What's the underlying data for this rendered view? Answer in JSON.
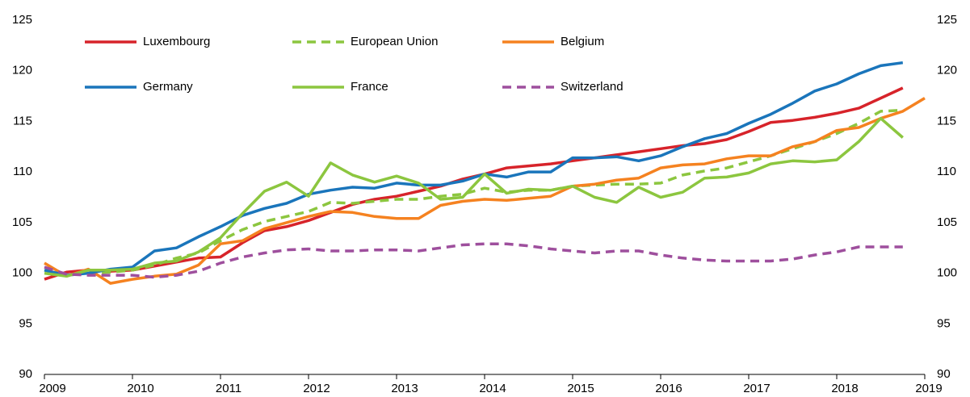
{
  "chart_data": {
    "type": "line",
    "x": [
      2009,
      2009.25,
      2009.5,
      2009.75,
      2010,
      2010.25,
      2010.5,
      2010.75,
      2011,
      2011.25,
      2011.5,
      2011.75,
      2012,
      2012.25,
      2012.5,
      2012.75,
      2013,
      2013.25,
      2013.5,
      2013.75,
      2014,
      2014.25,
      2014.5,
      2014.75,
      2015,
      2015.25,
      2015.5,
      2015.75,
      2016,
      2016.25,
      2016.5,
      2016.75,
      2017,
      2017.25,
      2017.5,
      2017.75,
      2018,
      2018.25,
      2018.5,
      2018.75,
      2019
    ],
    "xlim": [
      2009,
      2019
    ],
    "xticks": [
      2009,
      2010,
      2011,
      2012,
      2013,
      2014,
      2015,
      2016,
      2017,
      2018,
      2019
    ],
    "ylim": [
      90,
      125
    ],
    "yticks": [
      90,
      95,
      100,
      105,
      110,
      115,
      120,
      125
    ],
    "y2lim": [
      90,
      125
    ],
    "y2ticks": [
      90,
      95,
      100,
      105,
      110,
      115,
      120,
      125
    ],
    "grid": false,
    "series": [
      {
        "name": "Luxembourg",
        "color": "#d7232a",
        "dashed": false,
        "values": [
          99.4,
          100.1,
          100.3,
          100.2,
          100.3,
          100.7,
          101.1,
          101.5,
          101.6,
          103.0,
          104.2,
          104.6,
          105.2,
          106.0,
          106.8,
          107.3,
          107.6,
          108.1,
          108.6,
          109.3,
          109.8,
          110.4,
          110.6,
          110.8,
          111.1,
          111.4,
          111.7,
          112.0,
          112.3,
          112.6,
          112.8,
          113.2,
          114.0,
          114.9,
          115.1,
          115.4,
          115.8,
          116.3,
          117.3,
          118.3,
          null
        ]
      },
      {
        "name": "European Union",
        "color": "#8cc63f",
        "dashed": true,
        "values": [
          100.3,
          99.8,
          100.0,
          100.1,
          100.3,
          100.8,
          101.5,
          102.0,
          103.2,
          104.3,
          105.1,
          105.6,
          106.1,
          107.0,
          106.9,
          107.1,
          107.3,
          107.3,
          107.6,
          107.8,
          108.4,
          108.0,
          108.2,
          108.2,
          108.6,
          108.7,
          108.8,
          108.8,
          108.9,
          109.7,
          110.1,
          110.4,
          111.0,
          111.6,
          112.3,
          113.0,
          113.8,
          114.8,
          116.0,
          116.1,
          null
        ]
      },
      {
        "name": "Belgium",
        "color": "#f58220",
        "dashed": false,
        "values": [
          101.0,
          99.7,
          100.4,
          99.0,
          99.4,
          99.7,
          99.9,
          100.8,
          102.9,
          103.2,
          104.4,
          105.0,
          105.6,
          106.1,
          106.0,
          105.6,
          105.4,
          105.4,
          106.7,
          107.1,
          107.3,
          107.2,
          107.4,
          107.6,
          108.6,
          108.8,
          109.2,
          109.4,
          110.4,
          110.7,
          110.8,
          111.3,
          111.6,
          111.6,
          112.5,
          113.0,
          114.1,
          114.4,
          115.3,
          116.0,
          117.3
        ]
      },
      {
        "name": "Germany",
        "color": "#1a75bb",
        "dashed": false,
        "values": [
          100.3,
          99.8,
          100.0,
          100.4,
          100.6,
          102.2,
          102.5,
          103.6,
          104.6,
          105.7,
          106.4,
          106.9,
          107.8,
          108.2,
          108.5,
          108.4,
          108.9,
          108.7,
          108.7,
          109.1,
          109.8,
          109.5,
          110.0,
          110.0,
          111.4,
          111.4,
          111.5,
          111.1,
          111.6,
          112.5,
          113.3,
          113.8,
          114.8,
          115.7,
          116.8,
          118.0,
          118.7,
          119.7,
          120.5,
          120.8,
          null
        ]
      },
      {
        "name": "France",
        "color": "#8cc63f",
        "dashed": false,
        "values": [
          100.0,
          99.7,
          100.3,
          100.3,
          100.4,
          101.0,
          101.2,
          102.1,
          103.5,
          105.9,
          108.1,
          109.0,
          107.6,
          110.9,
          109.7,
          109.0,
          109.6,
          108.9,
          107.3,
          107.5,
          109.8,
          107.9,
          108.3,
          108.2,
          108.6,
          107.5,
          107.0,
          108.5,
          107.5,
          108.0,
          109.4,
          109.5,
          109.9,
          110.8,
          111.1,
          111.0,
          111.2,
          113.0,
          115.3,
          113.4,
          null
        ]
      },
      {
        "name": "Switzerland",
        "color": "#9e4f9d",
        "dashed": true,
        "values": [
          100.6,
          99.9,
          99.8,
          99.8,
          99.8,
          99.6,
          99.8,
          100.2,
          101.0,
          101.6,
          102.0,
          102.3,
          102.4,
          102.2,
          102.2,
          102.3,
          102.3,
          102.2,
          102.5,
          102.8,
          102.9,
          102.9,
          102.7,
          102.4,
          102.2,
          102.0,
          102.2,
          102.2,
          101.8,
          101.5,
          101.3,
          101.2,
          101.2,
          101.2,
          101.4,
          101.8,
          102.1,
          102.6,
          102.6,
          102.6,
          null
        ]
      }
    ]
  }
}
